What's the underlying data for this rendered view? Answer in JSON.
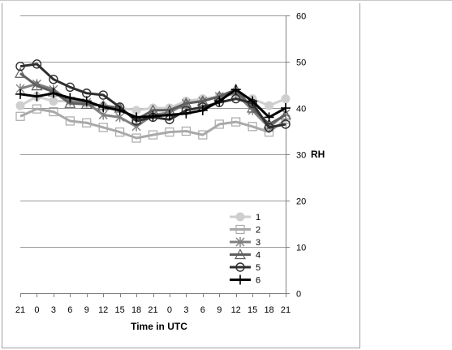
{
  "chart_data": {
    "type": "line",
    "xlabel": "Time in UTC",
    "ylabel": "RH",
    "ylim": [
      0,
      60
    ],
    "y_ticks": [
      "0",
      "10",
      "20",
      "30",
      "40",
      "50",
      "60"
    ],
    "y_axis_position": "right",
    "grid": true,
    "legend_position": "bottom-right",
    "categories": [
      "21",
      "0",
      "3",
      "6",
      "9",
      "12",
      "15",
      "18",
      "21",
      "0",
      "3",
      "6",
      "9",
      "12",
      "15",
      "18",
      "21"
    ],
    "series": [
      {
        "name": "1",
        "color": "#cfcfcf",
        "marker": "circle-filled",
        "values": [
          40.5,
          42.5,
          41.5,
          41.5,
          41,
          40.5,
          40,
          39.5,
          40,
          40,
          41.5,
          42,
          42.5,
          43,
          42,
          40.5,
          42
        ]
      },
      {
        "name": "2",
        "color": "#a9a9a9",
        "marker": "square-open",
        "values": [
          38.2,
          39.8,
          39.2,
          37.2,
          36.8,
          35.8,
          34.8,
          33.5,
          34.2,
          34.8,
          35,
          34.2,
          36.5,
          37,
          36,
          34.8,
          37.5
        ]
      },
      {
        "name": "3",
        "color": "#808080",
        "marker": "star",
        "values": [
          44.2,
          45.2,
          44,
          41.5,
          41.2,
          38.5,
          38,
          36,
          38.5,
          39,
          41,
          41.5,
          42.5,
          43.2,
          39.5,
          35.8,
          38.8
        ]
      },
      {
        "name": "4",
        "color": "#5e5e5e",
        "marker": "triangle-open",
        "values": [
          47.5,
          44.8,
          43.5,
          41,
          40.8,
          40.5,
          40,
          37.5,
          39.5,
          39.5,
          41,
          41.5,
          42.5,
          44,
          40,
          36.5,
          38.5
        ]
      },
      {
        "name": "5",
        "color": "#2e2e2e",
        "marker": "circle-open",
        "values": [
          49,
          49.5,
          46.2,
          44.5,
          43.2,
          42.8,
          40.2,
          37.2,
          38,
          37.5,
          39.5,
          40.2,
          41.2,
          42,
          41,
          35.8,
          36.5
        ]
      },
      {
        "name": "6",
        "color": "#000000",
        "marker": "plus",
        "values": [
          43,
          42.5,
          43.2,
          42.2,
          41.5,
          40.2,
          39.5,
          38,
          38.2,
          38.5,
          38.8,
          39.5,
          41.5,
          44,
          41.5,
          38,
          40
        ]
      }
    ]
  }
}
